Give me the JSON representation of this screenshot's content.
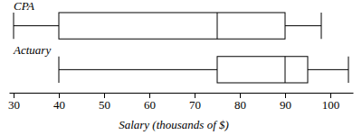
{
  "chart_data": {
    "type": "box",
    "orientation": "horizontal",
    "color": "#000000",
    "categories": [
      "CPA",
      "Actuary"
    ],
    "stats": [
      {
        "min": 30,
        "q1": 40,
        "median": 75,
        "q3": 90,
        "max": 98
      },
      {
        "min": 40,
        "q1": 75,
        "median": 90,
        "q3": 95,
        "max": 104
      }
    ],
    "xlabel": "Salary (thousands of $)",
    "xlim": [
      29,
      105
    ],
    "xticks": [
      30,
      40,
      50,
      60,
      70,
      80,
      90,
      100
    ]
  }
}
